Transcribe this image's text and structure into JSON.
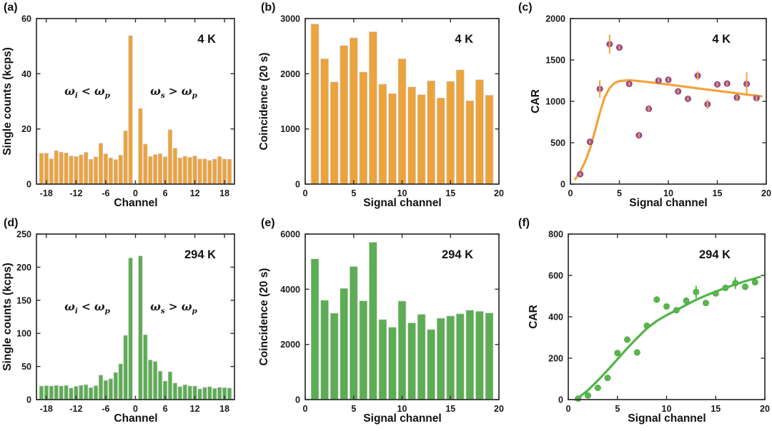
{
  "style": {
    "axis_color": "#2e2e2e",
    "bar_edge_color": "#cccccc",
    "text_color": "#1a1a1a",
    "background": "#ffffff",
    "bar_rel_width": 0.8
  },
  "chart_data": [
    {
      "panel": "(a)",
      "type": "bar",
      "temp_label": "4 K",
      "xlabel": "Channel",
      "ylabel": "Single counts (kcps)",
      "xlim": [
        -20,
        20
      ],
      "ylim": [
        0,
        60
      ],
      "xticks": [
        -18,
        -12,
        -6,
        0,
        6,
        12,
        18
      ],
      "yticks": [
        0,
        20,
        40,
        60
      ],
      "color": "#ECA33C",
      "x": [
        -19,
        -18,
        -17,
        -16,
        -15,
        -14,
        -13,
        -12,
        -11,
        -10,
        -9,
        -8,
        -7,
        -6,
        -5,
        -4,
        -3,
        -2,
        -1,
        1,
        2,
        3,
        4,
        5,
        6,
        7,
        8,
        9,
        10,
        11,
        12,
        13,
        14,
        15,
        16,
        17,
        18,
        19
      ],
      "values": [
        11.2,
        11.2,
        9.2,
        12.1,
        11.6,
        11.3,
        10.2,
        10.0,
        10.6,
        11.5,
        9.0,
        9.9,
        14.8,
        11.0,
        9.5,
        8.9,
        10.5,
        19.3,
        53.8,
        27.4,
        14.5,
        10.0,
        10.7,
        11.0,
        9.9,
        19.7,
        13.0,
        9.5,
        10.1,
        9.7,
        10.2,
        9.1,
        9.1,
        8.6,
        9.1,
        10.0,
        9.1,
        9.0
      ],
      "annotations": [
        {
          "base": "ω",
          "sub": "i",
          "rel": "<",
          "base2": "ω",
          "sub2": "p"
        },
        {
          "base": "ω",
          "sub": "s",
          "rel": ">",
          "base2": "ω",
          "sub2": "p"
        }
      ]
    },
    {
      "panel": "(b)",
      "type": "bar",
      "temp_label": "4 K",
      "xlabel": "Signal channel",
      "ylabel": "Coincidence (20 s)",
      "xlim": [
        0,
        20
      ],
      "ylim": [
        0,
        3000
      ],
      "xticks": [
        0,
        5,
        10,
        15,
        20
      ],
      "yticks": [
        0,
        1000,
        2000,
        3000
      ],
      "color": "#ECA33C",
      "x": [
        1,
        2,
        3,
        4,
        5,
        6,
        7,
        8,
        9,
        10,
        11,
        12,
        13,
        14,
        15,
        16,
        17,
        18,
        19
      ],
      "values": [
        2900,
        2270,
        1850,
        2510,
        2650,
        2030,
        2760,
        1810,
        1640,
        2270,
        1760,
        1620,
        1870,
        1560,
        1860,
        2070,
        1510,
        1890,
        1610
      ]
    },
    {
      "panel": "(c)",
      "type": "scatter",
      "temp_label": "4 K",
      "xlabel": "Signal channel",
      "ylabel": "CAR",
      "xlim": [
        0,
        20
      ],
      "ylim": [
        0,
        2000
      ],
      "xticks": [
        0,
        5,
        10,
        15,
        20
      ],
      "yticks": [
        0,
        500,
        1000,
        1500,
        2000
      ],
      "marker_color": "#A3519F",
      "marker_edge": "#7D3C7A",
      "errorbar_color": "#F2A33C",
      "fit_color": "#F2A33C",
      "x": [
        1,
        2,
        3,
        4,
        5,
        6,
        7,
        8,
        9,
        10,
        11,
        12,
        13,
        14,
        15,
        16,
        17,
        18,
        19
      ],
      "y": [
        120,
        510,
        1150,
        1690,
        1650,
        1210,
        590,
        910,
        1250,
        1260,
        1120,
        1030,
        1310,
        965,
        1205,
        1215,
        1045,
        1210,
        1040
      ],
      "yerr": [
        20,
        20,
        105,
        115,
        25,
        25,
        25,
        30,
        30,
        25,
        25,
        25,
        55,
        60,
        25,
        25,
        30,
        140,
        40
      ],
      "fit": {
        "x": [
          0.5,
          1,
          1.5,
          2,
          2.5,
          3,
          3.5,
          4,
          4.5,
          5,
          6,
          7,
          8,
          9,
          10,
          11,
          12,
          13,
          14,
          15,
          16,
          17,
          18,
          19,
          19.5
        ],
        "y": [
          60,
          150,
          270,
          430,
          640,
          860,
          1050,
          1160,
          1220,
          1245,
          1255,
          1245,
          1232,
          1218,
          1203,
          1188,
          1172,
          1157,
          1142,
          1127,
          1112,
          1097,
          1082,
          1067,
          1060
        ]
      }
    },
    {
      "panel": "(d)",
      "type": "bar",
      "temp_label": "294 K",
      "xlabel": "Channel",
      "ylabel": "Single counts (kcps)",
      "xlim": [
        -20,
        20
      ],
      "ylim": [
        0,
        250
      ],
      "xticks": [
        -18,
        -12,
        -6,
        0,
        6,
        12,
        18
      ],
      "yticks": [
        0,
        50,
        100,
        150,
        200,
        250
      ],
      "color": "#5CAD53",
      "x": [
        -19,
        -18,
        -17,
        -16,
        -15,
        -14,
        -13,
        -12,
        -11,
        -10,
        -9,
        -8,
        -7,
        -6,
        -5,
        -4,
        -3,
        -2,
        -1,
        1,
        2,
        3,
        4,
        5,
        6,
        7,
        8,
        9,
        10,
        11,
        12,
        13,
        14,
        15,
        16,
        17,
        18,
        19
      ],
      "values": [
        20.5,
        21,
        20.5,
        21.5,
        20.5,
        21.5,
        17.5,
        20,
        21.5,
        22.5,
        18,
        21,
        37,
        29,
        31.5,
        41,
        54,
        97,
        214,
        217,
        98,
        60,
        57.5,
        43,
        28,
        42,
        25,
        19.5,
        22.5,
        20.5,
        20.5,
        16,
        18.5,
        19.5,
        17,
        18.5,
        18,
        17.5
      ],
      "annotations": [
        {
          "base": "ω",
          "sub": "i",
          "rel": "<",
          "base2": "ω",
          "sub2": "p"
        },
        {
          "base": "ω",
          "sub": "s",
          "rel": ">",
          "base2": "ω",
          "sub2": "p"
        }
      ]
    },
    {
      "panel": "(e)",
      "type": "bar",
      "temp_label": "294 K",
      "xlabel": "Signal channel",
      "ylabel": "Coincidence (20 s)",
      "xlim": [
        0,
        20
      ],
      "ylim": [
        0,
        6000
      ],
      "xticks": [
        0,
        5,
        10,
        15,
        20
      ],
      "yticks": [
        0,
        2000,
        4000,
        6000
      ],
      "color": "#5CAD53",
      "x": [
        1,
        2,
        3,
        4,
        5,
        6,
        7,
        8,
        9,
        10,
        11,
        12,
        13,
        14,
        15,
        16,
        17,
        18,
        19
      ],
      "values": [
        5100,
        3600,
        3130,
        4030,
        4820,
        3580,
        5700,
        2900,
        2620,
        3570,
        2780,
        3090,
        2540,
        2950,
        3030,
        3110,
        3240,
        3200,
        3140
      ]
    },
    {
      "panel": "(f)",
      "type": "scatter",
      "temp_label": "294 K",
      "xlabel": "Signal channel",
      "ylabel": "CAR",
      "xlim": [
        0,
        20
      ],
      "ylim": [
        0,
        800
      ],
      "xticks": [
        0,
        5,
        10,
        15,
        20
      ],
      "yticks": [
        0,
        200,
        400,
        600,
        800
      ],
      "marker_color": "#5FBA50",
      "marker_edge": "#4CA344",
      "errorbar_color": "#4FB546",
      "fit_color": "#4FB546",
      "x": [
        1,
        2,
        3,
        4,
        5,
        6,
        7,
        8,
        9,
        10,
        11,
        12,
        13,
        14,
        15,
        16,
        17,
        18,
        19
      ],
      "y": [
        5,
        20,
        57,
        105,
        225,
        290,
        228,
        357,
        483,
        450,
        432,
        478,
        520,
        467,
        513,
        540,
        563,
        545,
        567
      ],
      "yerr": [
        5,
        5,
        8,
        8,
        10,
        10,
        10,
        12,
        12,
        12,
        14,
        12,
        30,
        12,
        12,
        12,
        28,
        12,
        12
      ],
      "fit": {
        "x": [
          0.7,
          1,
          2,
          3,
          4,
          5,
          6,
          7,
          8,
          9,
          10,
          11,
          12,
          13,
          14,
          15,
          16,
          17,
          18,
          19,
          19.5
        ],
        "y": [
          0,
          8,
          45,
          92,
          142,
          195,
          248,
          298,
          344,
          380,
          408,
          432,
          458,
          482,
          503,
          522,
          540,
          557,
          572,
          586,
          593
        ]
      }
    }
  ]
}
